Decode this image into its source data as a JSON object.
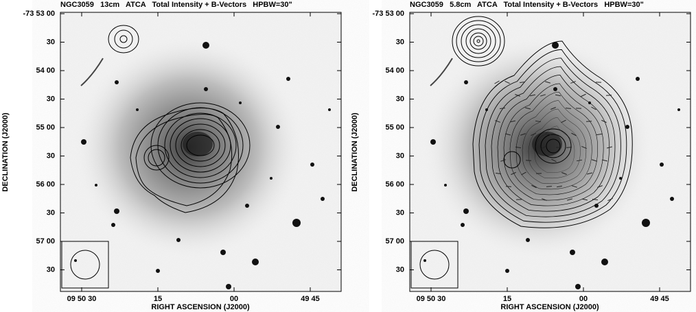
{
  "panels": [
    {
      "title": "NGC3059   13cm   ATCA   Total Intensity + B-Vectors   HPBW=30\"",
      "yticks": [
        "-73 53 00",
        "30",
        "54 00",
        "30",
        "55 00",
        "30",
        "56 00",
        "30",
        "57 00",
        "30"
      ],
      "xticks": [
        "09 50 30",
        "15",
        "00",
        "49 45"
      ],
      "xlabel": "RIGHT ASCENSION (J2000)",
      "ylabel": "DECLINATION (J2000)"
    },
    {
      "title": "NGC3059   5.8cm   ATCA   Total Intensity + B-Vectors   HPBW=30\"",
      "yticks": [
        "-73 53 00",
        "30",
        "54 00",
        "30",
        "55 00",
        "30",
        "56 00",
        "30",
        "57 00",
        "30"
      ],
      "xticks": [
        "09 50 30",
        "15",
        "00",
        "49 45"
      ],
      "xlabel": "RIGHT ASCENSION (J2000)",
      "ylabel": "DECLINATION (J2000)"
    }
  ]
}
